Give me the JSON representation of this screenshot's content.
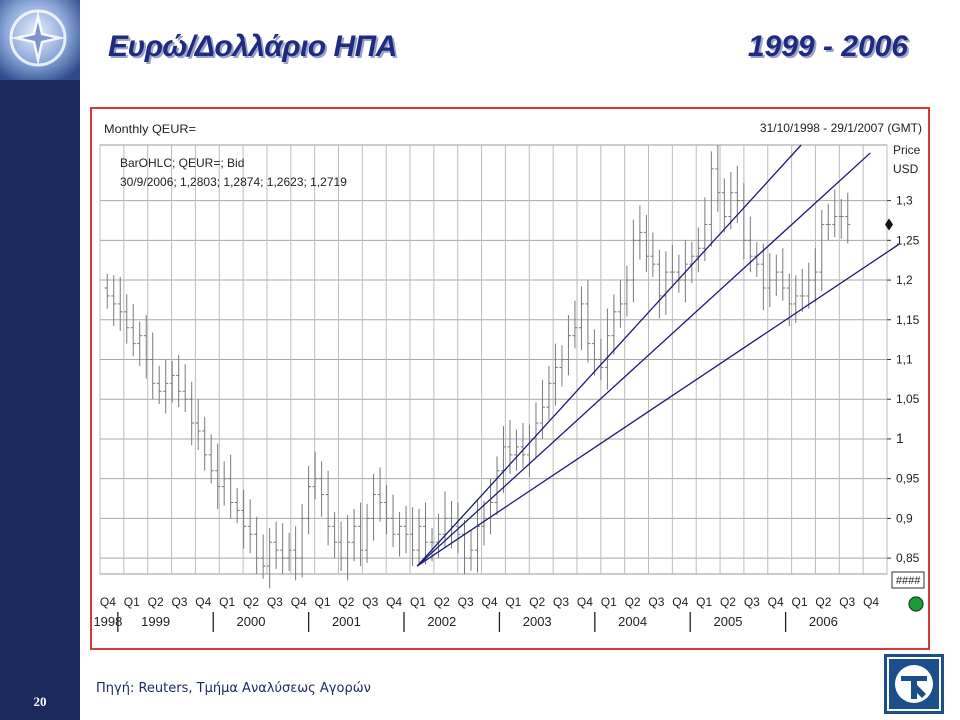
{
  "header": {
    "title": "Ευρώ/Δολλάριο ΗΠΑ",
    "period": "1999 - 2006"
  },
  "slide_number": "20",
  "source_note": "Πηγή: Reuters, Τμήμα Αναλύσεως Αγορών",
  "icons": {
    "corner_logo": "compass-star-icon",
    "bank_logo": "bank-logo-icon"
  },
  "colors": {
    "title": "#1f2a80",
    "sidebar": "#1b2a5c",
    "frame": "#d43a3a",
    "trendline": "#1a1a7a",
    "grid": "#9a9a9a",
    "bars": "#7a7a7a"
  },
  "chart_data": {
    "type": "ohlc",
    "instrument_label": "Monthly QEUR=",
    "series_label": "BarOHLC; QEUR=; Bid",
    "last_bar_label": "30/9/2006; 1,2803; 1,2874; 1,2623; 1,2719",
    "date_range": "31/10/1998 - 29/1/2007 (GMT)",
    "price_label": "Price",
    "currency_label": "USD",
    "y_axis_ticks": [
      "0,85",
      "0,9",
      "0,95",
      "1",
      "1,05",
      "1,1",
      "1,15",
      "1,2",
      "1,25",
      "1,3"
    ],
    "ylim": [
      0.83,
      1.37
    ],
    "overflow_tick": "####",
    "quarters": [
      "Q4",
      "Q1",
      "Q2",
      "Q3",
      "Q4",
      "Q1",
      "Q2",
      "Q3",
      "Q4",
      "Q1",
      "Q2",
      "Q3",
      "Q4",
      "Q1",
      "Q2",
      "Q3",
      "Q4",
      "Q1",
      "Q2",
      "Q3",
      "Q4",
      "Q1",
      "Q2",
      "Q3",
      "Q4",
      "Q1",
      "Q2",
      "Q3",
      "Q4",
      "Q1",
      "Q2",
      "Q3",
      "Q4"
    ],
    "years": [
      "1998",
      "1999",
      "2000",
      "2001",
      "2002",
      "2003",
      "2004",
      "2005",
      "2006"
    ],
    "close_values": [
      1.18,
      1.17,
      1.16,
      1.14,
      1.12,
      1.13,
      1.1,
      1.07,
      1.06,
      1.07,
      1.08,
      1.06,
      1.05,
      1.02,
      1.01,
      0.98,
      0.96,
      0.94,
      0.95,
      0.92,
      0.91,
      0.89,
      0.88,
      0.85,
      0.84,
      0.87,
      0.86,
      0.85,
      0.86,
      0.85,
      0.9,
      0.94,
      0.95,
      0.93,
      0.89,
      0.87,
      0.85,
      0.87,
      0.89,
      0.86,
      0.9,
      0.93,
      0.92,
      0.9,
      0.88,
      0.89,
      0.88,
      0.86,
      0.89,
      0.87,
      0.87,
      0.88,
      0.9,
      0.89,
      0.88,
      0.85,
      0.86,
      0.89,
      0.9,
      0.92,
      0.96,
      0.99,
      0.98,
      0.99,
      0.98,
      1.0,
      1.02,
      1.04,
      1.07,
      1.09,
      1.1,
      1.13,
      1.14,
      1.17,
      1.12,
      1.1,
      1.09,
      1.13,
      1.16,
      1.17,
      1.2,
      1.25,
      1.26,
      1.23,
      1.22,
      1.18,
      1.21,
      1.21,
      1.2,
      1.22,
      1.23,
      1.24,
      1.27,
      1.34,
      1.31,
      1.28,
      1.31,
      1.3,
      1.25,
      1.23,
      1.22,
      1.19,
      1.2,
      1.21,
      1.19,
      1.17,
      1.18,
      1.18,
      1.2,
      1.21,
      1.27,
      1.27,
      1.28,
      1.28,
      1.27
    ],
    "trendlines": [
      {
        "from": {
          "quarter_index": 12.8,
          "value": 0.84
        },
        "to": {
          "quarter_index": 28.9,
          "value": 1.37
        }
      },
      {
        "from": {
          "quarter_index": 12.8,
          "value": 0.84
        },
        "to": {
          "quarter_index": 31.8,
          "value": 1.36
        }
      },
      {
        "from": {
          "quarter_index": 12.8,
          "value": 0.84
        },
        "to": {
          "quarter_index": 33.0,
          "value": 1.245
        }
      }
    ],
    "current_marker_value": 1.27,
    "grid": true
  }
}
